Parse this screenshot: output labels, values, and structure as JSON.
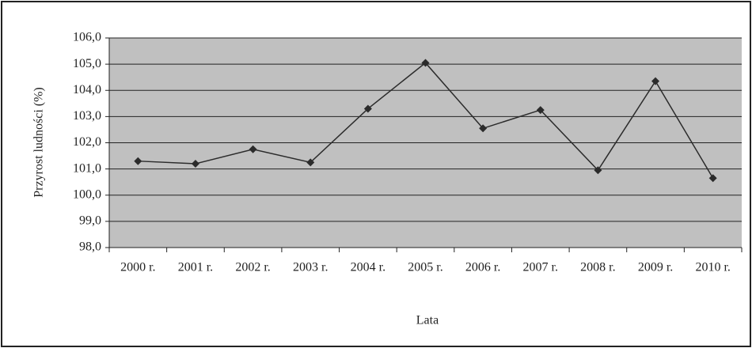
{
  "chart_data": {
    "type": "line",
    "x_label": "Lata",
    "y_label": "Przyrost ludności (%)",
    "categories": [
      "2000 r.",
      "2001 r.",
      "2002 r.",
      "2003 r.",
      "2004 r.",
      "2005 r.",
      "2006 r.",
      "2007 r.",
      "2008 r.",
      "2009 r.",
      "2010 r."
    ],
    "values": [
      101.3,
      101.2,
      101.75,
      101.25,
      103.3,
      105.05,
      102.55,
      103.25,
      100.95,
      104.35,
      100.65
    ],
    "color": "#2b2b2b",
    "ylim": [
      98,
      106
    ],
    "yticks": [
      {
        "value": 98,
        "label": "98,0"
      },
      {
        "value": 99,
        "label": "99,0"
      },
      {
        "value": 100,
        "label": "100,0"
      },
      {
        "value": 101,
        "label": "101,0"
      },
      {
        "value": 102,
        "label": "102,0"
      },
      {
        "value": 103,
        "label": "103,0"
      },
      {
        "value": 104,
        "label": "104,0"
      },
      {
        "value": 105,
        "label": "105,0"
      },
      {
        "value": 106,
        "label": "106,0"
      }
    ],
    "grid": true
  }
}
